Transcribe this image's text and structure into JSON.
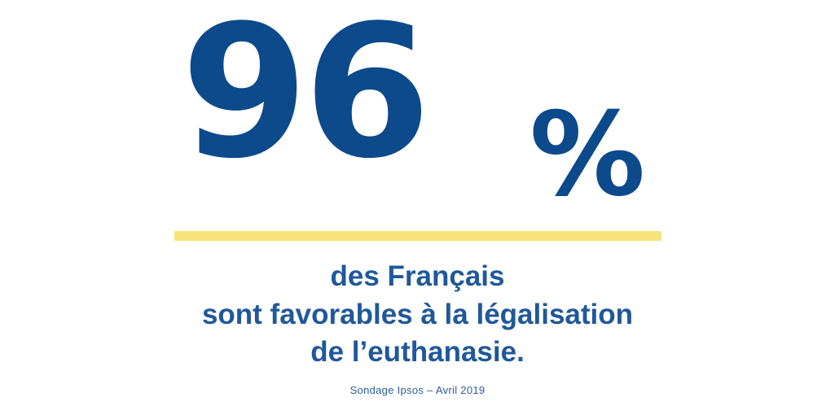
{
  "statistic": {
    "value": "96",
    "unit": "%"
  },
  "caption": {
    "line1": "des Français",
    "line2": "sont favorables à la légalisation",
    "line3": "de l’euthanasie."
  },
  "source": "Sondage  Ipsos – Avril  2019",
  "colors": {
    "primary_blue": "#0c4a8c",
    "caption_blue": "#20589a",
    "highlight_yellow": "#f8e37a",
    "background": "#ffffff"
  }
}
